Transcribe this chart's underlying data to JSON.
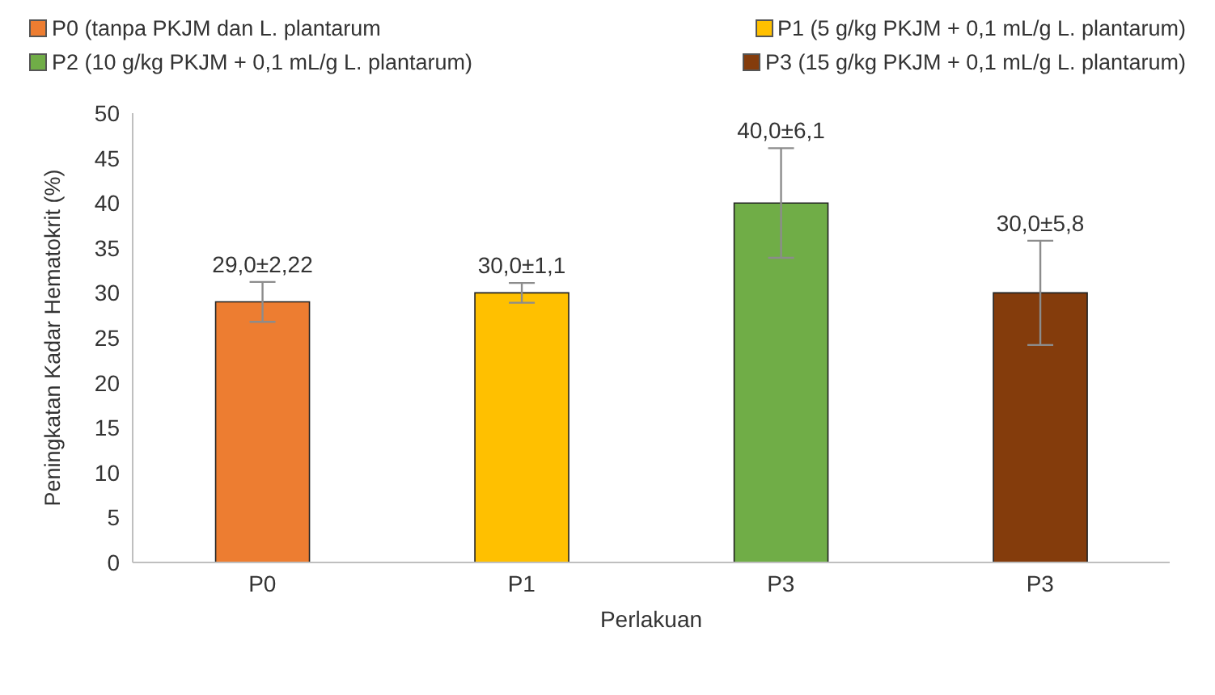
{
  "chart_data": {
    "type": "bar",
    "xlabel": "Perlakuan",
    "ylabel": "Peningkatan Kadar Hematokrit (%)",
    "categories": [
      "P0",
      "P1",
      "P3",
      "P3"
    ],
    "stacked": true,
    "series": [
      {
        "name": "P0 (tanpa PKJM dan L. plantarum",
        "color": "#ed7d31",
        "values": [
          29.0,
          null,
          null,
          null
        ],
        "errors": [
          2.22,
          null,
          null,
          null
        ],
        "value_labels": [
          "29,0±2,22",
          null,
          null,
          null
        ]
      },
      {
        "name": "P1 (5 g/kg PKJM + 0,1 mL/g L. plantarum)",
        "color": "#ffc000",
        "values": [
          null,
          30.0,
          null,
          null
        ],
        "errors": [
          null,
          1.1,
          null,
          null
        ],
        "value_labels": [
          null,
          "30,0±1,1",
          null,
          null
        ]
      },
      {
        "name": "P2 (10 g/kg PKJM + 0,1 mL/g L. plantarum)",
        "color": "#70ad47",
        "values": [
          null,
          null,
          40.0,
          null
        ],
        "errors": [
          null,
          null,
          6.1,
          null
        ],
        "value_labels": [
          null,
          null,
          "40,0±6,1",
          null
        ]
      },
      {
        "name": "P3 (15 g/kg PKJM + 0,1 mL/g L. plantarum)",
        "color": "#843c0c",
        "values": [
          null,
          null,
          null,
          30.0
        ],
        "errors": [
          null,
          null,
          null,
          5.8
        ],
        "value_labels": [
          null,
          null,
          null,
          "30,0±5,8"
        ]
      }
    ],
    "ylim": [
      0,
      50
    ],
    "yticks": [
      0,
      5,
      10,
      15,
      20,
      25,
      30,
      35,
      40,
      45,
      50
    ],
    "grid": false,
    "legend": "top"
  }
}
